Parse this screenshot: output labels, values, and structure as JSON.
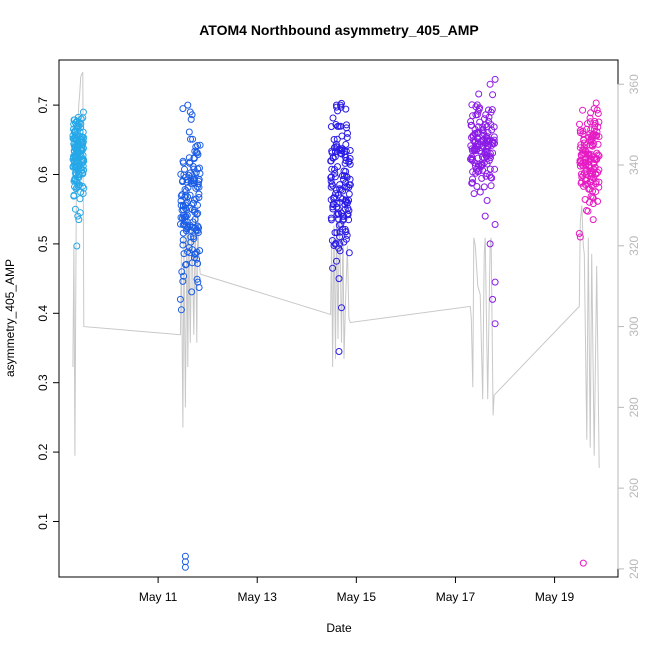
{
  "chart_data": {
    "type": "scatter",
    "title": "ATOM4 Northbound asymmetry_405_AMP",
    "xlabel": "Date",
    "ylabel": "asymmetry_405_AMP",
    "xlim": [
      9.0,
      20.28
    ],
    "ylim": [
      0.02,
      0.765
    ],
    "y2lim": [
      238,
      366
    ],
    "x_ticks": [
      {
        "value": 11,
        "label": "May 11"
      },
      {
        "value": 13,
        "label": "May 13"
      },
      {
        "value": 15,
        "label": "May 15"
      },
      {
        "value": 17,
        "label": "May 17"
      },
      {
        "value": 19,
        "label": "May 19"
      }
    ],
    "y_ticks": [
      0.1,
      0.2,
      0.3,
      0.4,
      0.5,
      0.6,
      0.7
    ],
    "y2_ticks": [
      240,
      260,
      280,
      300,
      320,
      340,
      360
    ],
    "series": [
      {
        "color": "#26a8e8",
        "day_range": [
          9.28,
          9.5
        ],
        "center": 0.635,
        "spread": 0.027,
        "points": [
          [
            9.45,
            0.68
          ],
          [
            9.4,
            0.67
          ],
          [
            9.3,
            0.57
          ],
          [
            9.33,
            0.55
          ],
          [
            9.4,
            0.535
          ],
          [
            9.43,
            0.545
          ],
          [
            9.38,
            0.54
          ],
          [
            9.36,
            0.497
          ]
        ]
      },
      {
        "color": "#1b5de6",
        "day_range": [
          11.45,
          11.85
        ],
        "center": 0.565,
        "spread": 0.055,
        "points": [
          [
            11.5,
            0.695
          ],
          [
            11.6,
            0.7
          ],
          [
            11.65,
            0.69
          ],
          [
            11.45,
            0.42
          ],
          [
            11.47,
            0.405
          ],
          [
            11.8,
            0.445
          ],
          [
            11.55,
            0.05
          ],
          [
            11.55,
            0.042
          ],
          [
            11.55,
            0.034
          ]
        ]
      },
      {
        "color": "#2a1be6",
        "day_range": [
          14.48,
          14.88
        ],
        "center": 0.59,
        "spread": 0.05,
        "points": [
          [
            14.6,
            0.7
          ],
          [
            14.68,
            0.7
          ],
          [
            14.52,
            0.465
          ],
          [
            14.6,
            0.475
          ],
          [
            14.65,
            0.45
          ],
          [
            14.7,
            0.408
          ],
          [
            14.65,
            0.345
          ]
        ]
      },
      {
        "color": "#8a1be6",
        "day_range": [
          17.3,
          17.8
        ],
        "center": 0.638,
        "spread": 0.03,
        "points": [
          [
            17.7,
            0.73
          ],
          [
            17.8,
            0.737
          ],
          [
            17.75,
            0.715
          ],
          [
            17.6,
            0.54
          ],
          [
            17.8,
            0.528
          ],
          [
            17.7,
            0.5
          ],
          [
            17.8,
            0.445
          ],
          [
            17.75,
            0.42
          ],
          [
            17.8,
            0.385
          ]
        ]
      },
      {
        "color": "#e61bc3",
        "day_range": [
          19.5,
          19.9
        ],
        "center": 0.625,
        "spread": 0.03,
        "points": [
          [
            19.8,
            0.695
          ],
          [
            19.5,
            0.515
          ],
          [
            19.52,
            0.51
          ],
          [
            19.78,
            0.535
          ],
          [
            19.58,
            0.04
          ]
        ]
      }
    ],
    "secondary_series": {
      "color": "#c8c8c8",
      "axis": "right",
      "path": [
        [
          9.28,
          290
        ],
        [
          9.3,
          320
        ],
        [
          9.32,
          268
        ],
        [
          9.35,
          332
        ],
        [
          9.38,
          350
        ],
        [
          9.4,
          355
        ],
        [
          9.42,
          358
        ],
        [
          9.44,
          362
        ],
        [
          9.48,
          363
        ],
        [
          9.5,
          300
        ],
        [
          11.45,
          298
        ],
        [
          11.47,
          318
        ],
        [
          11.5,
          275
        ],
        [
          11.52,
          322
        ],
        [
          11.55,
          280
        ],
        [
          11.58,
          324
        ],
        [
          11.6,
          290
        ],
        [
          11.62,
          323
        ],
        [
          11.65,
          296
        ],
        [
          11.68,
          326
        ],
        [
          11.72,
          298
        ],
        [
          11.75,
          327
        ],
        [
          11.78,
          296
        ],
        [
          11.8,
          330
        ],
        [
          11.82,
          318
        ],
        [
          11.85,
          313
        ],
        [
          14.48,
          303
        ],
        [
          14.5,
          322
        ],
        [
          14.52,
          290
        ],
        [
          14.55,
          325
        ],
        [
          14.58,
          292
        ],
        [
          14.6,
          327
        ],
        [
          14.63,
          297
        ],
        [
          14.66,
          330
        ],
        [
          14.7,
          296
        ],
        [
          14.73,
          324
        ],
        [
          14.75,
          292
        ],
        [
          14.78,
          305
        ],
        [
          14.82,
          320
        ],
        [
          14.85,
          302
        ],
        [
          14.88,
          301
        ],
        [
          17.3,
          305
        ],
        [
          17.32,
          302
        ],
        [
          17.35,
          285
        ],
        [
          17.37,
          322
        ],
        [
          17.4,
          320
        ],
        [
          17.45,
          310
        ],
        [
          17.5,
          308
        ],
        [
          17.55,
          282
        ],
        [
          17.58,
          318
        ],
        [
          17.6,
          322
        ],
        [
          17.65,
          282
        ],
        [
          17.7,
          320
        ],
        [
          17.72,
          322
        ],
        [
          17.76,
          278
        ],
        [
          17.78,
          283
        ],
        [
          19.5,
          305
        ],
        [
          19.52,
          326
        ],
        [
          19.55,
          330
        ],
        [
          19.58,
          320
        ],
        [
          19.6,
          318
        ],
        [
          19.65,
          272
        ],
        [
          19.68,
          322
        ],
        [
          19.72,
          270
        ],
        [
          19.75,
          318
        ],
        [
          19.8,
          268
        ],
        [
          19.85,
          315
        ],
        [
          19.9,
          265
        ]
      ]
    }
  }
}
